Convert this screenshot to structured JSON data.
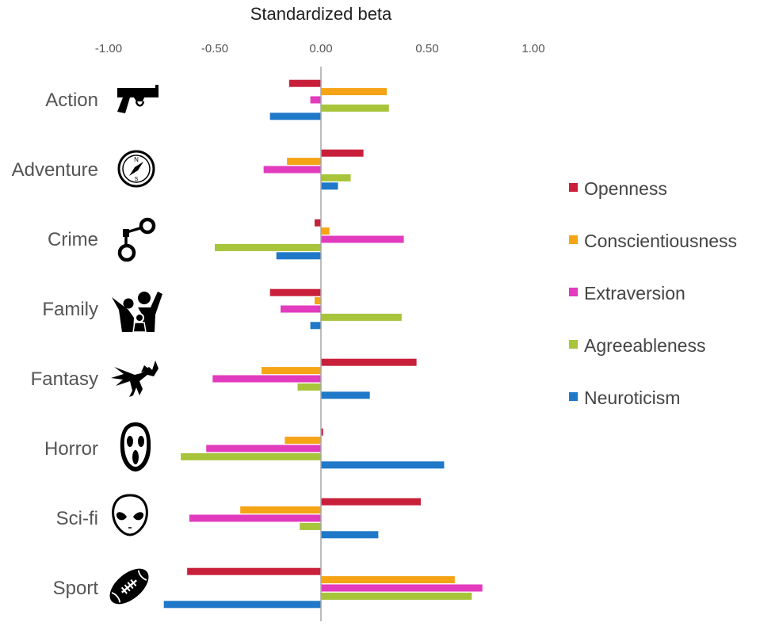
{
  "chart_data": {
    "type": "bar",
    "orientation": "horizontal",
    "title": "Standardized beta",
    "xlim": [
      -1.0,
      1.0
    ],
    "ticks": [
      "-1.00",
      "-0.50",
      "0.00",
      "0.50",
      "1.00"
    ],
    "tick_values": [
      -1.0,
      -0.5,
      0.0,
      0.5,
      1.0
    ],
    "categories": [
      "Action",
      "Adventure",
      "Crime",
      "Family",
      "Fantasy",
      "Horror",
      "Sci-fi",
      "Sport"
    ],
    "category_icons": [
      "pistol-icon",
      "compass-icon",
      "handcuffs-icon",
      "family-icon",
      "dragon-icon",
      "ghostface-mask-icon",
      "alien-head-icon",
      "football-icon"
    ],
    "legend_position": "right",
    "grid": false,
    "series": [
      {
        "name": "Openness",
        "color": "#c8203a",
        "values": [
          -0.15,
          0.2,
          -0.03,
          -0.24,
          0.45,
          0.01,
          0.47,
          -0.63
        ]
      },
      {
        "name": "Conscientiousness",
        "color": "#f5a416",
        "values": [
          0.31,
          -0.16,
          0.04,
          -0.03,
          -0.28,
          -0.17,
          -0.38,
          0.63
        ]
      },
      {
        "name": "Extraversion",
        "color": "#e23bbd",
        "values": [
          -0.05,
          -0.27,
          0.39,
          -0.19,
          -0.51,
          -0.54,
          -0.62,
          0.76
        ]
      },
      {
        "name": "Agreeableness",
        "color": "#a8c43a",
        "values": [
          0.32,
          0.14,
          -0.5,
          0.38,
          -0.11,
          -0.66,
          -0.1,
          0.71
        ]
      },
      {
        "name": "Neuroticism",
        "color": "#1f78c8",
        "values": [
          -0.24,
          0.08,
          -0.21,
          -0.05,
          0.23,
          0.58,
          0.27,
          -0.74
        ]
      }
    ]
  }
}
